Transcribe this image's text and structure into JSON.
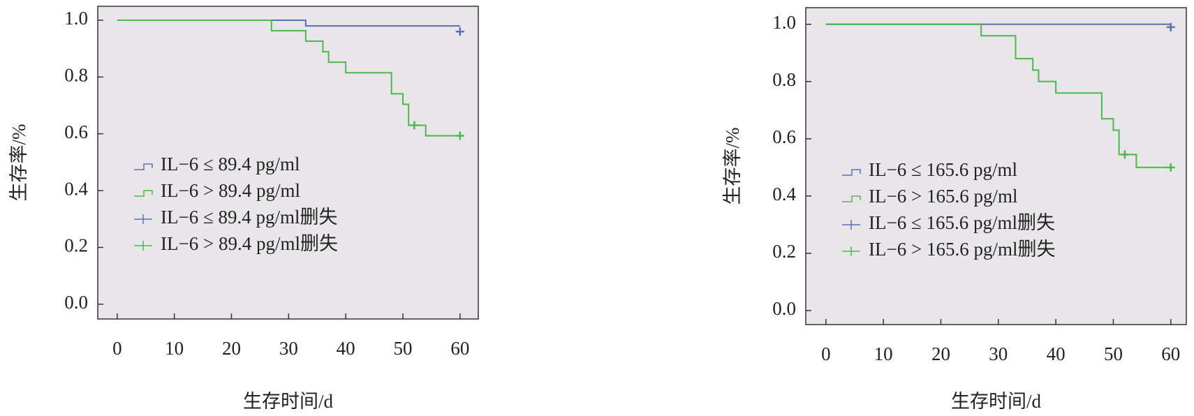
{
  "chart_data": [
    {
      "type": "step",
      "ylabel": "生存率/%",
      "xlabel": "生存时间/d",
      "xlim": [
        -3.4,
        63.2
      ],
      "ylim": [
        -0.052,
        1.049
      ],
      "xticks": [
        0,
        10,
        20,
        30,
        40,
        50,
        60
      ],
      "yticks": [
        {
          "value": 0,
          "label": "0.0"
        },
        {
          "value": 0.2,
          "label": "0.2"
        },
        {
          "value": 0.4,
          "label": "0.4"
        },
        {
          "value": 0.6,
          "label": "0.6"
        },
        {
          "value": 0.8,
          "label": "0.8"
        },
        {
          "value": 1,
          "label": "1.0"
        }
      ],
      "legend": "lower left",
      "series": [
        {
          "name": "IL−6 ≤ 89.4 pg/ml",
          "color": "#5b6db8",
          "marker": "step",
          "x": [
            0,
            33,
            60
          ],
          "values": [
            1.0,
            0.98,
            0.98
          ]
        },
        {
          "name": "IL−6 > 89.4 pg/ml",
          "color": "#4cb84c",
          "marker": "step",
          "x": [
            0,
            27,
            33,
            36,
            37,
            40,
            48,
            50,
            51,
            54,
            60
          ],
          "values": [
            1.0,
            0.963,
            0.926,
            0.889,
            0.852,
            0.815,
            0.741,
            0.704,
            0.63,
            0.593,
            0.593
          ]
        },
        {
          "name": "IL−6 ≤ 89.4 pg/ml删失",
          "color": "#5b6db8",
          "marker": "+",
          "x": [
            60
          ],
          "values": [
            0.96
          ]
        },
        {
          "name": "IL−6 > 89.4 pg/ml删失",
          "color": "#4cb84c",
          "marker": "+",
          "x": [
            52,
            60
          ],
          "values": [
            0.63,
            0.593
          ]
        }
      ]
    },
    {
      "type": "step",
      "ylabel": "生存率/%",
      "xlabel": "生存时间/d",
      "xlim": [
        -3.5,
        62.7
      ],
      "ylim": [
        -0.049,
        1.058
      ],
      "xticks": [
        0,
        10,
        20,
        30,
        40,
        50,
        60
      ],
      "yticks": [
        {
          "value": 0,
          "label": "0.0"
        },
        {
          "value": 0.2,
          "label": "0.2"
        },
        {
          "value": 0.4,
          "label": "0.4"
        },
        {
          "value": 0.6,
          "label": "0.6"
        },
        {
          "value": 0.8,
          "label": "0.8"
        },
        {
          "value": 1,
          "label": "1.0"
        }
      ],
      "legend": "lower left",
      "series": [
        {
          "name": "IL−6 ≤ 165.6 pg/ml",
          "color": "#5b6db8",
          "marker": "step",
          "x": [
            0,
            60
          ],
          "values": [
            1.0,
            1.0
          ]
        },
        {
          "name": "IL−6 > 165.6 pg/ml",
          "color": "#4cb84c",
          "marker": "step",
          "x": [
            0,
            27,
            33,
            36,
            37,
            40,
            48,
            50,
            51,
            54,
            60
          ],
          "values": [
            1.0,
            0.96,
            0.88,
            0.84,
            0.8,
            0.76,
            0.67,
            0.63,
            0.545,
            0.5,
            0.5
          ]
        },
        {
          "name": "IL−6 ≤ 165.6 pg/ml删失",
          "color": "#5b6db8",
          "marker": "+",
          "x": [
            60
          ],
          "values": [
            0.99
          ]
        },
        {
          "name": "IL−6 > 165.6 pg/ml删失",
          "color": "#4cb84c",
          "marker": "+",
          "x": [
            52,
            60
          ],
          "values": [
            0.545,
            0.5
          ]
        }
      ]
    }
  ]
}
